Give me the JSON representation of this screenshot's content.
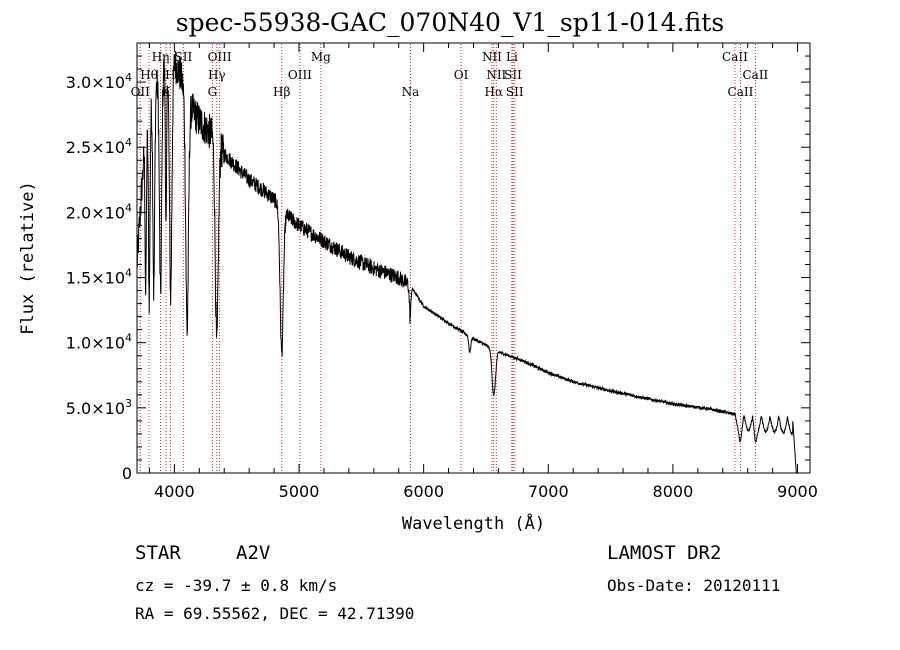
{
  "title": "spec-55938-GAC_070N40_V1_sp11-014.fits",
  "footer": {
    "obj_class": "STAR",
    "subclass": "A2V",
    "survey": "LAMOST DR2",
    "cz": "cz = -39.7 ± 0.8 km/s",
    "obs_date": "Obs-Date: 20120111",
    "coords": "RA =  69.55562, DEC =  42.71390"
  },
  "chart_data": {
    "type": "line",
    "title": "spec-55938-GAC_070N40_V1_sp11-014.fits",
    "xlabel": "Wavelength (Å)",
    "ylabel": "Flux (relative)",
    "xlim": [
      3700,
      9100
    ],
    "ylim": [
      0,
      33000
    ],
    "xticks": [
      4000,
      5000,
      6000,
      7000,
      8000,
      9000
    ],
    "yticks": [
      {
        "value": 0,
        "label": "0"
      },
      {
        "value": 5000,
        "label": "5.0×10",
        "exp": "3"
      },
      {
        "value": 10000,
        "label": "1.0×10",
        "exp": "4"
      },
      {
        "value": 15000,
        "label": "1.5×10",
        "exp": "4"
      },
      {
        "value": 20000,
        "label": "2.0×10",
        "exp": "4"
      },
      {
        "value": 25000,
        "label": "2.5×10",
        "exp": "4"
      },
      {
        "value": 30000,
        "label": "3.0×10",
        "exp": "4"
      }
    ],
    "continuum": [
      [
        3700,
        16000
      ],
      [
        3760,
        25000
      ],
      [
        3800,
        27500
      ],
      [
        3850,
        29500
      ],
      [
        3900,
        31000
      ],
      [
        3950,
        31800
      ],
      [
        4000,
        31500
      ],
      [
        4050,
        30500
      ],
      [
        4100,
        28500
      ],
      [
        4200,
        27000
      ],
      [
        4300,
        26000
      ],
      [
        4400,
        24500
      ],
      [
        4500,
        23500
      ],
      [
        4600,
        22500
      ],
      [
        4700,
        21800
      ],
      [
        4800,
        21000
      ],
      [
        4900,
        19800
      ],
      [
        5000,
        19000
      ],
      [
        5200,
        17800
      ],
      [
        5400,
        16600
      ],
      [
        5600,
        15700
      ],
      [
        5800,
        15000
      ],
      [
        5900,
        14300
      ],
      [
        6000,
        12800
      ],
      [
        6200,
        11500
      ],
      [
        6400,
        10300
      ],
      [
        6600,
        9300
      ],
      [
        6800,
        8600
      ],
      [
        7000,
        7700
      ],
      [
        7200,
        7000
      ],
      [
        7500,
        6300
      ],
      [
        7800,
        5700
      ],
      [
        8000,
        5300
      ],
      [
        8300,
        4900
      ],
      [
        8500,
        4500
      ],
      [
        8700,
        4400
      ],
      [
        8900,
        4300
      ],
      [
        8960,
        4200
      ],
      [
        8980,
        1500
      ],
      [
        8990,
        0
      ]
    ],
    "absorption_lines": [
      {
        "center": 3770,
        "depth": 12000,
        "width": 5
      },
      {
        "center": 3798,
        "depth": 14000,
        "width": 6
      },
      {
        "center": 3835,
        "depth": 15000,
        "width": 7
      },
      {
        "center": 3889,
        "depth": 17000,
        "width": 9
      },
      {
        "center": 3933,
        "depth": 13000,
        "width": 5
      },
      {
        "center": 3970,
        "depth": 18000,
        "width": 10
      },
      {
        "center": 4102,
        "depth": 17500,
        "width": 11
      },
      {
        "center": 4340,
        "depth": 15500,
        "width": 12
      },
      {
        "center": 4861,
        "depth": 11000,
        "width": 13
      },
      {
        "center": 5892,
        "depth": 2500,
        "width": 6
      },
      {
        "center": 6370,
        "depth": 1200,
        "width": 8
      },
      {
        "center": 6563,
        "depth": 3500,
        "width": 14
      },
      {
        "center": 8542,
        "depth": 900,
        "width": 10
      },
      {
        "center": 8662,
        "depth": 1000,
        "width": 10
      }
    ],
    "ripples": {
      "start": 8500,
      "end": 8960,
      "period": 70,
      "amplitude": 1200
    },
    "noise": [
      {
        "x0": 3700,
        "x1": 4400,
        "amp": 1400
      },
      {
        "x0": 4400,
        "x1": 5900,
        "amp": 600
      },
      {
        "x0": 5900,
        "x1": 9000,
        "amp": 120
      }
    ],
    "line_markers": [
      {
        "x": 3726,
        "label": "OII",
        "row": 2
      },
      {
        "x": 3797,
        "label": "Hθ",
        "row": 1
      },
      {
        "x": 3889,
        "label": "Hη",
        "row": 0
      },
      {
        "x": 3933,
        "label": "K",
        "row": 2
      },
      {
        "x": 3968,
        "label": "H",
        "row": 1
      },
      {
        "x": 4072,
        "label": "SII",
        "row": 0
      },
      {
        "x": 4305,
        "label": "G",
        "row": 2
      },
      {
        "x": 4340,
        "label": "Hγ",
        "row": 1
      },
      {
        "x": 4363,
        "label": "OIII",
        "row": 0
      },
      {
        "x": 4861,
        "label": "Hβ",
        "row": 2
      },
      {
        "x": 5007,
        "label": "OIII",
        "row": 1
      },
      {
        "x": 5175,
        "label": "Mg",
        "row": 0
      },
      {
        "x": 5894,
        "label": "Na",
        "row": 2
      },
      {
        "x": 6300,
        "label": "OI",
        "row": 1
      },
      {
        "x": 6548,
        "label": "NII",
        "row": 0
      },
      {
        "x": 6563,
        "label": "Hα",
        "row": 2
      },
      {
        "x": 6583,
        "label": "NII",
        "row": 1
      },
      {
        "x": 6708,
        "label": "Li",
        "row": 0
      },
      {
        "x": 6717,
        "label": "SII",
        "row": 1
      },
      {
        "x": 6731,
        "label": "SII",
        "row": 2
      },
      {
        "x": 8498,
        "label": "CaII",
        "row": 0
      },
      {
        "x": 8542,
        "label": "CaII",
        "row": 2
      },
      {
        "x": 8662,
        "label": "CaII",
        "row": 1
      }
    ],
    "marker_color": "#d62728",
    "grid": false
  }
}
